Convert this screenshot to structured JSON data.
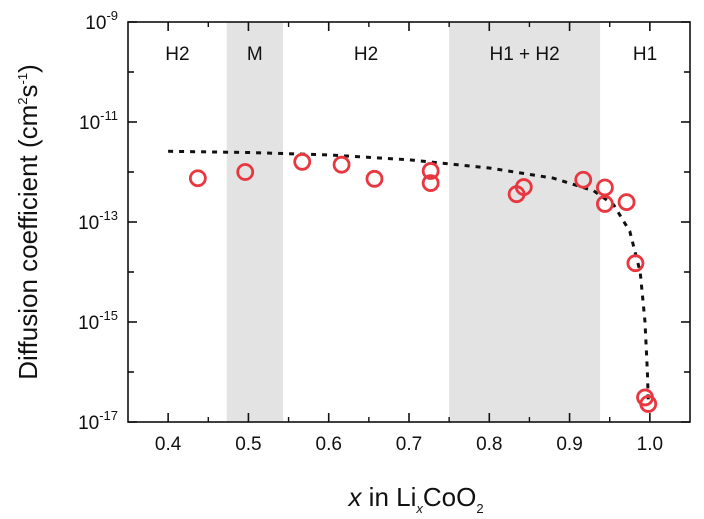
{
  "chart_data": {
    "type": "scatter",
    "xlabel": {
      "prefix": "x",
      "mid": " in Li",
      "sub1": "x",
      "mid2": "CoO",
      "sub2": "2"
    },
    "ylabel": {
      "main": "Diffusion coefficient (cm",
      "sup1": "2",
      "mid": "s",
      "sup2": "-1",
      "end": ")"
    },
    "xlim": [
      0.35,
      1.05
    ],
    "ylim_log10": [
      -17,
      -9
    ],
    "y_scale": "log",
    "x_ticks": [
      "0.4",
      "0.5",
      "0.6",
      "0.7",
      "0.8",
      "0.9",
      "1.0"
    ],
    "x_tick_values": [
      0.4,
      0.5,
      0.6,
      0.7,
      0.8,
      0.9,
      1.0
    ],
    "y_ticks": [
      {
        "base": "10",
        "exp": "-9",
        "value": -9
      },
      {
        "base": "10",
        "exp": "-11",
        "value": -11
      },
      {
        "base": "10",
        "exp": "-13",
        "value": -13
      },
      {
        "base": "10",
        "exp": "-15",
        "value": -15
      },
      {
        "base": "10",
        "exp": "-17",
        "value": -17
      }
    ],
    "phase_regions": [
      {
        "label": "H2",
        "x_start": 0.35,
        "x_end": 0.473,
        "shaded": false
      },
      {
        "label": "M",
        "x_start": 0.473,
        "x_end": 0.543,
        "shaded": true
      },
      {
        "label": "H2",
        "x_start": 0.543,
        "x_end": 0.75,
        "shaded": false
      },
      {
        "label": "H1 + H2",
        "x_start": 0.75,
        "x_end": 0.938,
        "shaded": true
      },
      {
        "label": "H1",
        "x_start": 0.938,
        "x_end": 1.05,
        "shaded": false
      }
    ],
    "shade_color": "#e3e3e3",
    "marker_color": "#e8373f",
    "points": [
      {
        "x": 0.437,
        "y": 7.5e-13
      },
      {
        "x": 0.496,
        "y": 1e-12
      },
      {
        "x": 0.567,
        "y": 1.6e-12
      },
      {
        "x": 0.616,
        "y": 1.4e-12
      },
      {
        "x": 0.657,
        "y": 7.3e-13
      },
      {
        "x": 0.727,
        "y": 1.05e-12
      },
      {
        "x": 0.727,
        "y": 6e-13
      },
      {
        "x": 0.834,
        "y": 3.6e-13
      },
      {
        "x": 0.843,
        "y": 5e-13
      },
      {
        "x": 0.917,
        "y": 7e-13
      },
      {
        "x": 0.944,
        "y": 4.9e-13
      },
      {
        "x": 0.944,
        "y": 2.3e-13
      },
      {
        "x": 0.971,
        "y": 2.5e-13
      },
      {
        "x": 0.982,
        "y": 1.5e-14
      },
      {
        "x": 0.994,
        "y": 3.1e-17
      },
      {
        "x": 0.998,
        "y": 2.3e-17
      }
    ],
    "fit_curve": [
      {
        "x": 0.4,
        "y": 2.6e-12
      },
      {
        "x": 0.5,
        "y": 2.45e-12
      },
      {
        "x": 0.6,
        "y": 2.2e-12
      },
      {
        "x": 0.7,
        "y": 1.75e-12
      },
      {
        "x": 0.8,
        "y": 1.2e-12
      },
      {
        "x": 0.88,
        "y": 7.5e-13
      },
      {
        "x": 0.93,
        "y": 4.2e-13
      },
      {
        "x": 0.955,
        "y": 2.2e-13
      },
      {
        "x": 0.975,
        "y": 6.5e-14
      },
      {
        "x": 0.988,
        "y": 1e-14
      },
      {
        "x": 0.994,
        "y": 1e-15
      },
      {
        "x": 0.997,
        "y": 1e-16
      },
      {
        "x": 0.998,
        "y": 2.5e-17
      }
    ],
    "grid": false,
    "legend": "none"
  }
}
